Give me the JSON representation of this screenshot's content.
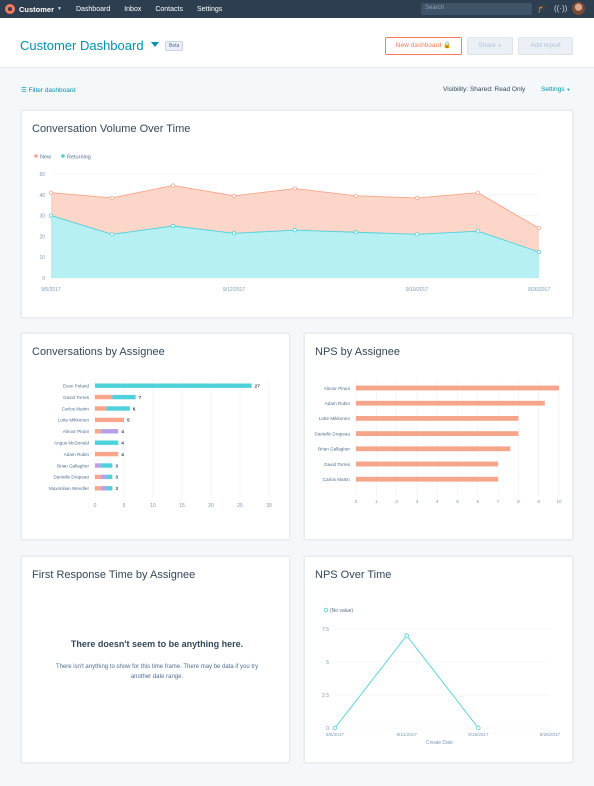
{
  "topnav": {
    "brand": "Customer",
    "links": [
      "Dashboard",
      "Inbox",
      "Contacts",
      "Settings"
    ],
    "search_placeholder": "Search"
  },
  "header": {
    "title": "Customer Dashboard",
    "beta": "Beta",
    "new_dashboard": "New dashboard",
    "share": "Share",
    "add_report": "Add report"
  },
  "toolbar": {
    "filter": "Filter dashboard",
    "visibility": "Visibility:  Shared: Read Only",
    "settings": "Settings"
  },
  "colors": {
    "new": "#f8a58b",
    "returning": "#4fd1dc",
    "nps": "#f4a58a",
    "purple": "#b6a0e8",
    "link": "#0091ae"
  },
  "cards": {
    "volume": {
      "title": "Conversation Volume Over Time"
    },
    "assignee": {
      "title": "Conversations by Assignee"
    },
    "nps_assignee": {
      "title": "NPS by Assignee"
    },
    "frt": {
      "title": "First Response Time by Assignee",
      "empty_title": "There doesn't seem to be anything here.",
      "empty_text": "There isn't anything to show for this time frame. There may be data if you try another date range."
    },
    "nps_time": {
      "title": "NPS Over Time"
    }
  },
  "chart_data": [
    {
      "type": "area",
      "title": "Conversation Volume Over Time",
      "legend": [
        "New",
        "Returning"
      ],
      "legend_placement": "top-left",
      "x_ticks": [
        "9/5/2017",
        "9/12/2017",
        "9/19/2017",
        "9/26/2017"
      ],
      "ylim": [
        0,
        50
      ],
      "y_ticks": [
        0,
        10,
        20,
        30,
        40,
        50
      ],
      "grid": true,
      "series": [
        {
          "name": "New",
          "values": [
            41,
            38.5,
            44.5,
            39.5,
            43,
            39.5,
            38.5,
            41,
            24
          ]
        },
        {
          "name": "Returning",
          "values": [
            30,
            21,
            25,
            21.5,
            23,
            22,
            21,
            22.5,
            12.5
          ]
        }
      ]
    },
    {
      "type": "bar",
      "title": "Conversations by Assignee",
      "orientation": "horizontal",
      "xlim": [
        0,
        30
      ],
      "x_ticks": [
        0,
        5,
        10,
        15,
        20,
        25,
        30
      ],
      "categories": [
        "Evan Poland",
        "David Torres",
        "Carlos Martin",
        "Lotte Mikkonen",
        "Alnoor Pirani",
        "Angus McDonald",
        "Adam Rubin",
        "Brian Gallagher",
        "Danielle Drapeau",
        "Maximilian Wendler"
      ],
      "totals": [
        27,
        7,
        6,
        5,
        4,
        4,
        4,
        3,
        3,
        3
      ],
      "series": [
        {
          "name": "",
          "color": "#f8a58b",
          "values": [
            0,
            3,
            2,
            5,
            1,
            0,
            4,
            0,
            1,
            1
          ]
        },
        {
          "name": "",
          "color": "#b6a0e8",
          "values": [
            0,
            0,
            0,
            0,
            3,
            0,
            0,
            1,
            1,
            1
          ]
        },
        {
          "name": "",
          "color": "#4fd1dc",
          "values": [
            27,
            4,
            4,
            0,
            0,
            4,
            0,
            2,
            1,
            1
          ]
        }
      ]
    },
    {
      "type": "bar",
      "title": "NPS by Assignee",
      "orientation": "horizontal",
      "xlim": [
        0,
        10
      ],
      "x_ticks": [
        0,
        1,
        2,
        3,
        4,
        5,
        6,
        7,
        8,
        9,
        10
      ],
      "categories": [
        "Alnoor Pirani",
        "Adam Rubin",
        "Lotte Mikkonen",
        "Danielle Drapeau",
        "Brian Gallagher",
        "David Torres",
        "Carlos Martin"
      ],
      "values": [
        10,
        9.3,
        8,
        8,
        7.6,
        7,
        7
      ]
    },
    {
      "type": "line",
      "title": "NPS Over Time",
      "legend": [
        "(No value)"
      ],
      "xlabel": "Create Date",
      "x_ticks": [
        "9/5/2017",
        "9/12/2017",
        "9/19/2017",
        "9/26/2017"
      ],
      "y_ticks": [
        0,
        2.5,
        5,
        7.5
      ],
      "ylim": [
        0,
        7.5
      ],
      "series": [
        {
          "name": "(No value)",
          "values": [
            0,
            7,
            0
          ]
        }
      ]
    }
  ]
}
